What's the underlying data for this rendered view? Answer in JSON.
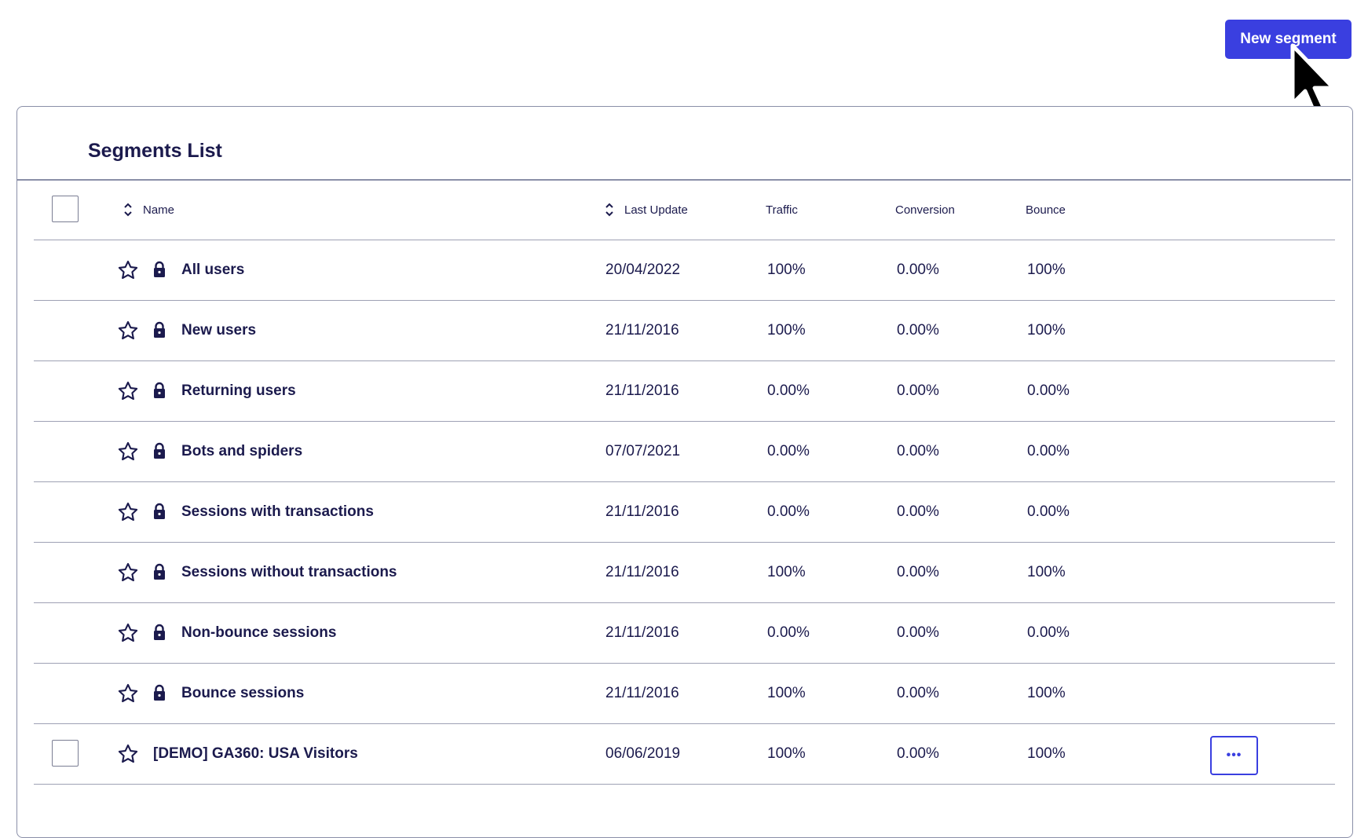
{
  "toolbar": {
    "new_segment_label": "New segment"
  },
  "panel": {
    "title": "Segments List"
  },
  "columns": {
    "name": "Name",
    "last_update": "Last Update",
    "traffic": "Traffic",
    "conversion": "Conversion",
    "bounce": "Bounce"
  },
  "rows": [
    {
      "name": "All users",
      "last_update": "20/04/2022",
      "traffic": "100%",
      "conversion": "0.00%",
      "bounce": "100%"
    },
    {
      "name": "New users",
      "last_update": "21/11/2016",
      "traffic": "100%",
      "conversion": "0.00%",
      "bounce": "100%"
    },
    {
      "name": "Returning users",
      "last_update": "21/11/2016",
      "traffic": "0.00%",
      "conversion": "0.00%",
      "bounce": "0.00%"
    },
    {
      "name": "Bots and spiders",
      "last_update": "07/07/2021",
      "traffic": "0.00%",
      "conversion": "0.00%",
      "bounce": "0.00%"
    },
    {
      "name": "Sessions with transactions",
      "last_update": "21/11/2016",
      "traffic": "0.00%",
      "conversion": "0.00%",
      "bounce": "0.00%"
    },
    {
      "name": "Sessions without transactions",
      "last_update": "21/11/2016",
      "traffic": "100%",
      "conversion": "0.00%",
      "bounce": "100%"
    },
    {
      "name": "Non-bounce sessions",
      "last_update": "21/11/2016",
      "traffic": "0.00%",
      "conversion": "0.00%",
      "bounce": "0.00%"
    },
    {
      "name": "Bounce sessions",
      "last_update": "21/11/2016",
      "traffic": "100%",
      "conversion": "0.00%",
      "bounce": "100%"
    },
    {
      "name": "[DEMO] GA360: USA Visitors",
      "last_update": "06/06/2019",
      "traffic": "100%",
      "conversion": "0.00%",
      "bounce": "100%"
    }
  ],
  "more_label": "•••",
  "icons": [
    "star-icon",
    "lock-icon",
    "sort-icon",
    "cursor-icon",
    "more-icon"
  ],
  "colors": {
    "accent": "#3a3fe0",
    "text": "#1b1a4d",
    "border": "#9ea1b4"
  }
}
